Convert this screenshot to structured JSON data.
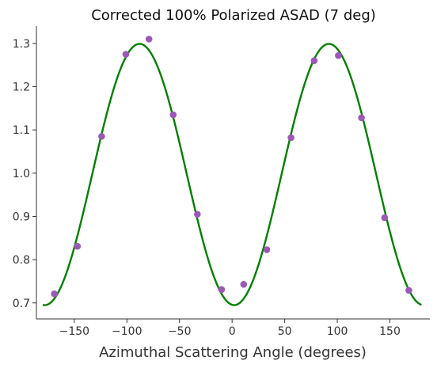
{
  "chart_data": {
    "type": "scatter",
    "title": "Corrected 100% Polarized ASAD (7 deg)",
    "xlabel": "Azimuthal Scattering Angle (degrees)",
    "ylabel": "",
    "xlim": [
      -186,
      188
    ],
    "ylim": [
      0.663,
      1.34
    ],
    "x_ticks": [
      -150,
      -100,
      -50,
      0,
      50,
      100,
      150
    ],
    "x_tick_labels": [
      "−150",
      "−100",
      "−50",
      "0",
      "50",
      "100",
      "150"
    ],
    "y_ticks": [
      0.7,
      0.8,
      0.9,
      1.0,
      1.1,
      1.2,
      1.3
    ],
    "y_tick_labels": [
      "0.7",
      "0.8",
      "0.9",
      "1.0",
      "1.1",
      "1.2",
      "1.3"
    ],
    "grid": false,
    "series": [
      {
        "kind": "scatter",
        "color": "#9b59b6",
        "x": [
          -169,
          -147,
          -124,
          -101,
          -79,
          -56,
          -33,
          -10,
          11,
          33,
          56,
          78,
          101,
          123,
          145,
          168
        ],
        "y": [
          0.721,
          0.831,
          1.085,
          1.275,
          1.31,
          1.135,
          0.905,
          0.731,
          0.743,
          0.823,
          1.082,
          1.26,
          1.272,
          1.128,
          0.897,
          0.729
        ]
      },
      {
        "kind": "line",
        "color": "#008000",
        "function": "0.997 + 0.302 * cos(2*(x - 92))",
        "x_range": [
          -180,
          180
        ]
      }
    ]
  }
}
